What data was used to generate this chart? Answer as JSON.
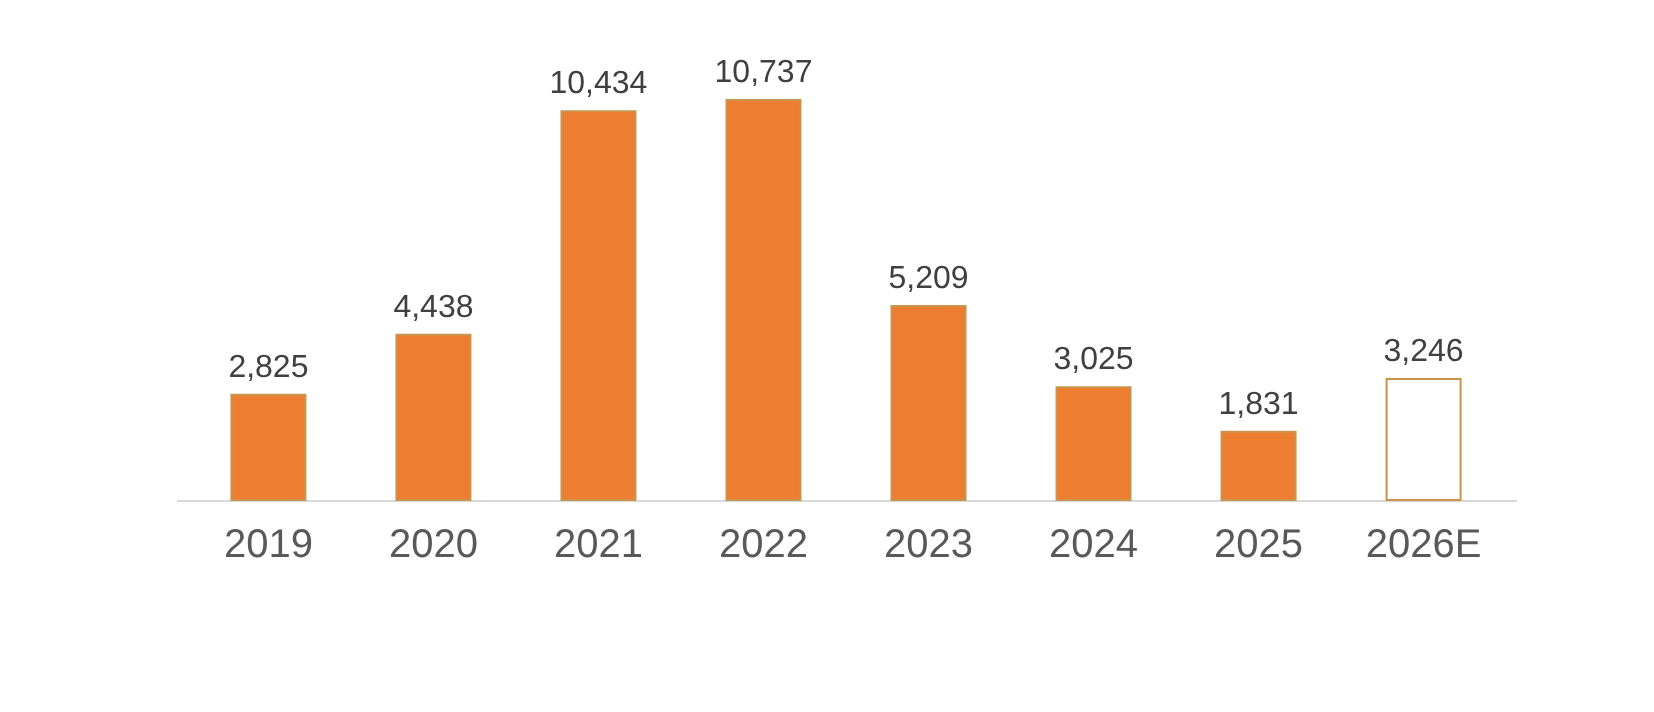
{
  "chart_data": {
    "type": "bar",
    "categories": [
      "2019",
      "2020",
      "2021",
      "2022",
      "2023",
      "2024",
      "2025",
      "2026E"
    ],
    "values": [
      2825,
      4438,
      10434,
      10737,
      5209,
      3025,
      1831,
      3246
    ],
    "value_labels": [
      "2,825",
      "4,438",
      "10,434",
      "10,737",
      "5,209",
      "3,025",
      "1,831",
      "3,246"
    ],
    "colors": [
      "#ed7d31",
      "#ed7d31",
      "#ed7d31",
      "#ed7d31",
      "#ed7d31",
      "#ed7d31",
      "#ed7d31",
      "#ffffff"
    ],
    "color": "#c9954c"
  }
}
